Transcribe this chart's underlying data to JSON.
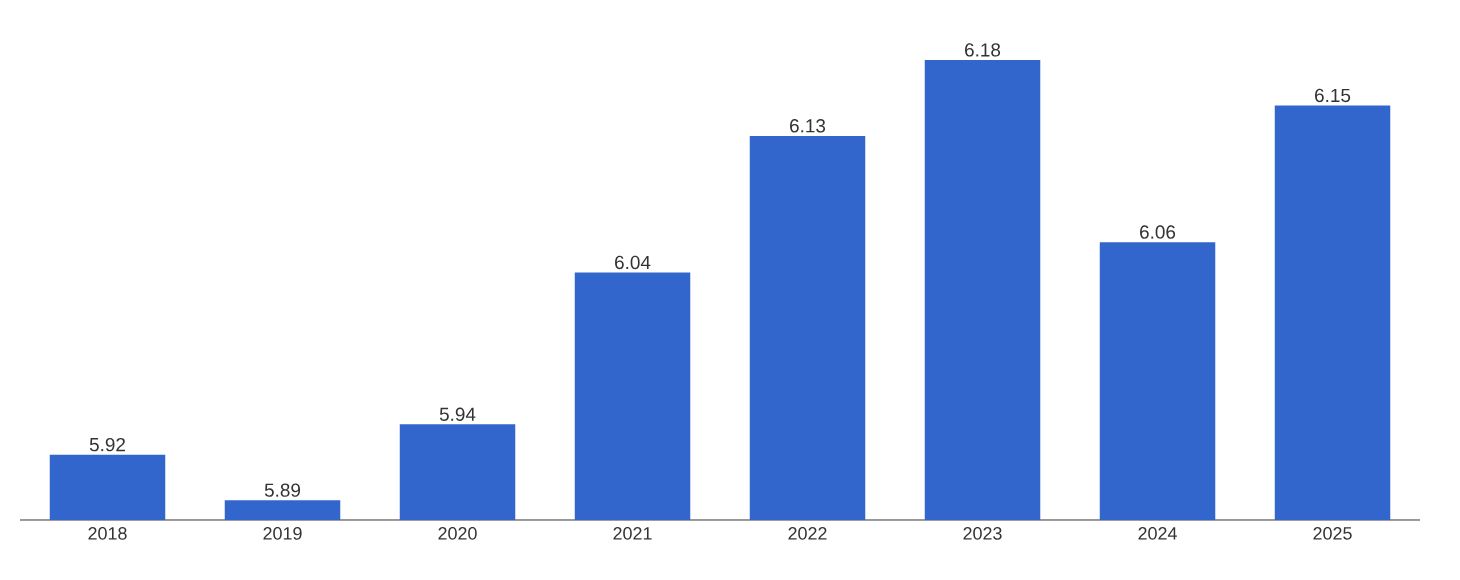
{
  "chart_data": {
    "type": "bar",
    "categories": [
      "2018",
      "2019",
      "2020",
      "2021",
      "2022",
      "2023",
      "2024",
      "2025"
    ],
    "values": [
      5.92,
      5.89,
      5.94,
      6.04,
      6.13,
      6.18,
      6.06,
      6.15
    ],
    "color": "#3366cc",
    "ylim": [
      5.877,
      6.18
    ],
    "data_labels": true,
    "tick_labels": "x"
  }
}
